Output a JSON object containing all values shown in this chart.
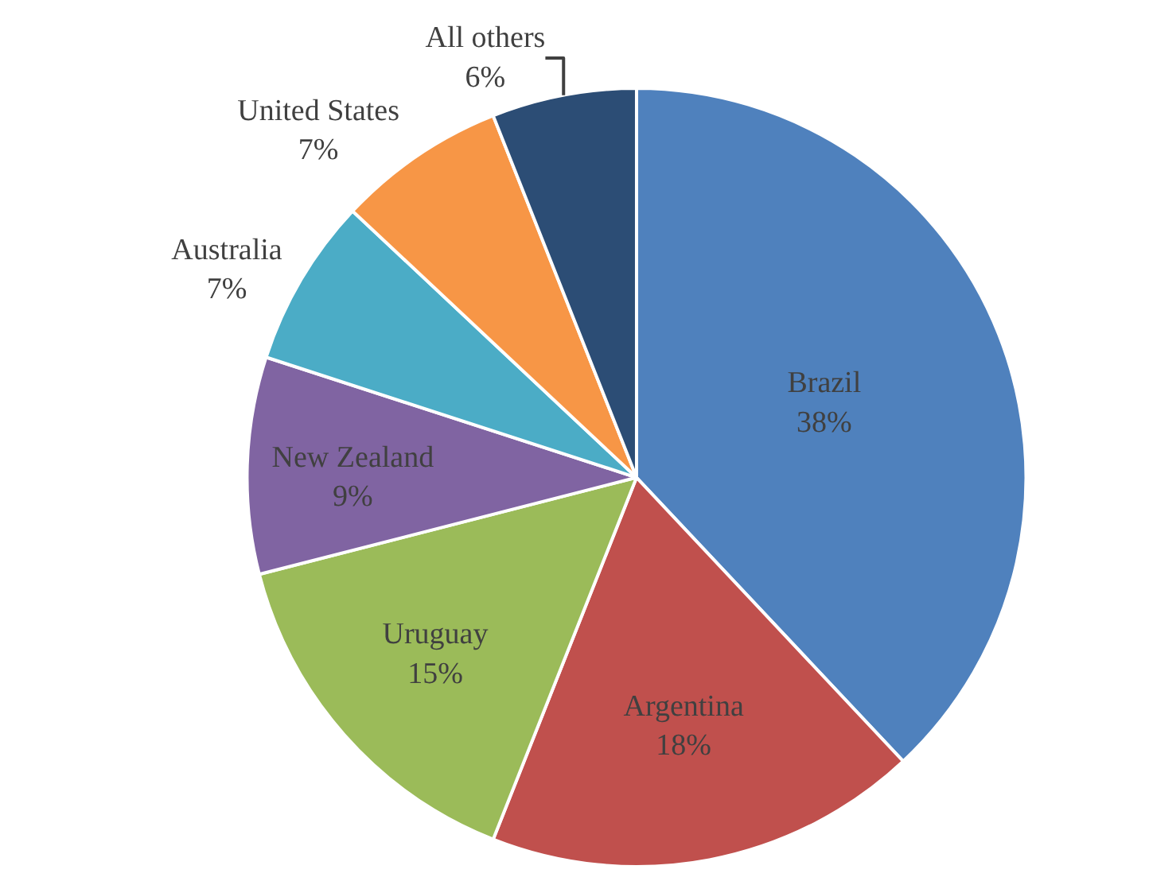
{
  "chart_data": {
    "type": "pie",
    "categories": [
      "Brazil",
      "Argentina",
      "Uruguay",
      "New Zealand",
      "Australia",
      "United States",
      "All others"
    ],
    "values": [
      38,
      18,
      15,
      9,
      7,
      7,
      6
    ],
    "value_labels": [
      "38%",
      "18%",
      "15%",
      "9%",
      "7%",
      "7%",
      "6%"
    ],
    "colors": [
      "#4f81bd",
      "#c0504d",
      "#9bbb59",
      "#8064a2",
      "#4bacc6",
      "#f79646",
      "#2c4d75"
    ],
    "legend": false
  }
}
